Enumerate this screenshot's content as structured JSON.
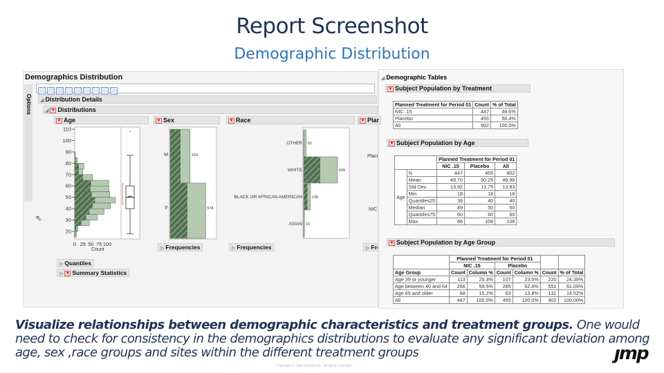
{
  "slide": {
    "title": "Report Screenshot",
    "subtitle": "Demographic Distribution",
    "caption_bold": "Visualize relationships between demographic characteristics and treatment groups.",
    "caption_rest": " One would need to check for consistency in the demographics distributions to evaluate any significant deviation among age, sex ,race groups and sites within the different treatment groups",
    "copyright": "Copyright © SAS Institute Inc. All rights reserved.",
    "logo": "jmp"
  },
  "left": {
    "window_title": "Demographics Distribution",
    "options_label": "Options",
    "distribution_details": "Distribution Details",
    "distributions": "Distributions",
    "panels": {
      "age": "Age",
      "sex": "Sex",
      "race": "Race",
      "plan": "Plar"
    },
    "frequencies": "Frequencies",
    "freq_cut": "Freq",
    "quantiles": "Quantiles",
    "summary_statistics": "Summary Statistics",
    "plan_labels": [
      "Placi",
      "NIC"
    ],
    "colors": {
      "hatched": "#4f6f50",
      "light": "#b6c9b1"
    }
  },
  "chart_data": [
    {
      "type": "bar",
      "orientation": "horizontal",
      "title": "Age",
      "xlabel": "Count",
      "x_ticks": [
        "0",
        "25",
        "50",
        "75",
        "100"
      ],
      "y_ticks": [
        "20",
        "30",
        "40",
        "50",
        "60",
        "70",
        "80",
        "90",
        "100",
        "110"
      ],
      "ylim": [
        15,
        110
      ],
      "bins_start": [
        15,
        20,
        25,
        30,
        35,
        40,
        45,
        50,
        55,
        60,
        65,
        70,
        75,
        80,
        85
      ],
      "values": [
        5,
        10,
        45,
        70,
        90,
        110,
        125,
        108,
        105,
        105,
        55,
        25,
        28,
        8,
        2
      ],
      "highlighted": [
        2,
        5,
        20,
        35,
        45,
        55,
        62,
        52,
        48,
        50,
        25,
        12,
        12,
        3,
        1
      ],
      "boxplot": {
        "min": 18,
        "q1": 40,
        "median": 50,
        "q3": 60,
        "max": 87,
        "outlier": 108,
        "mean": 50
      }
    },
    {
      "type": "bar",
      "orientation": "horizontal",
      "title": "Sex",
      "categories": [
        "M",
        "F"
      ],
      "values": [
        324,
        578
      ],
      "highlighted": [
        168,
        280
      ]
    },
    {
      "type": "bar",
      "orientation": "horizontal",
      "title": "Race",
      "categories": [
        "OTHER",
        "WHITE",
        "BLACK OR AFRICAN AMERICAN",
        "ASIAN"
      ],
      "values": [
        50,
        699,
        138,
        15
      ],
      "highlighted": [
        10,
        343,
        80,
        5
      ]
    }
  ],
  "right": {
    "title": "Demographic Tables",
    "t1": {
      "title": "Subject Population by Treatment",
      "header": [
        "Planned Treatment for Period 01",
        "Count",
        "% of Total"
      ],
      "rows": [
        [
          "NIC .15",
          "447",
          "49.6%"
        ],
        [
          "Placebo",
          "455",
          "50.4%"
        ],
        [
          "All",
          "902",
          "100.0%"
        ]
      ]
    },
    "t2": {
      "title": "Subject Population by Age",
      "group": "Planned Treatment for Period 01",
      "cols": [
        "NIC .15",
        "Placebo",
        "All"
      ],
      "var": "Age",
      "rows": [
        [
          "N",
          "447",
          "455",
          "902"
        ],
        [
          "Mean",
          "49.70",
          "50.25",
          "49.98"
        ],
        [
          "Std Dev",
          "13.92",
          "13.75",
          "13.83"
        ],
        [
          "Min",
          "18",
          "18",
          "18"
        ],
        [
          "Quantiles25",
          "39",
          "40",
          "40"
        ],
        [
          "Median",
          "49",
          "50",
          "50"
        ],
        [
          "Quantiles75",
          "60",
          "60",
          "60"
        ],
        [
          "Max",
          "86",
          "108",
          "108"
        ]
      ]
    },
    "t3": {
      "title": "Subject Population by Age Group",
      "group": "Planned Treatment for Period 01",
      "sub": [
        "NIC .15",
        "Placebo"
      ],
      "header": [
        "Age Group",
        "Count",
        "Column %",
        "Count",
        "Column %",
        "Count",
        "% of Total"
      ],
      "rows": [
        [
          "Age 39 or younger",
          "113",
          "25.3%",
          "107",
          "23.5%",
          "220",
          "24.39%"
        ],
        [
          "Age between 40 and 64",
          "266",
          "59.5%",
          "285",
          "62.6%",
          "551",
          "61.09%"
        ],
        [
          "Age 65 and older",
          "68",
          "15.2%",
          "63",
          "13.8%",
          "131",
          "14.52%"
        ],
        [
          "All",
          "447",
          "100.0%",
          "455",
          "100.0%",
          "902",
          "100.00%"
        ]
      ]
    }
  }
}
